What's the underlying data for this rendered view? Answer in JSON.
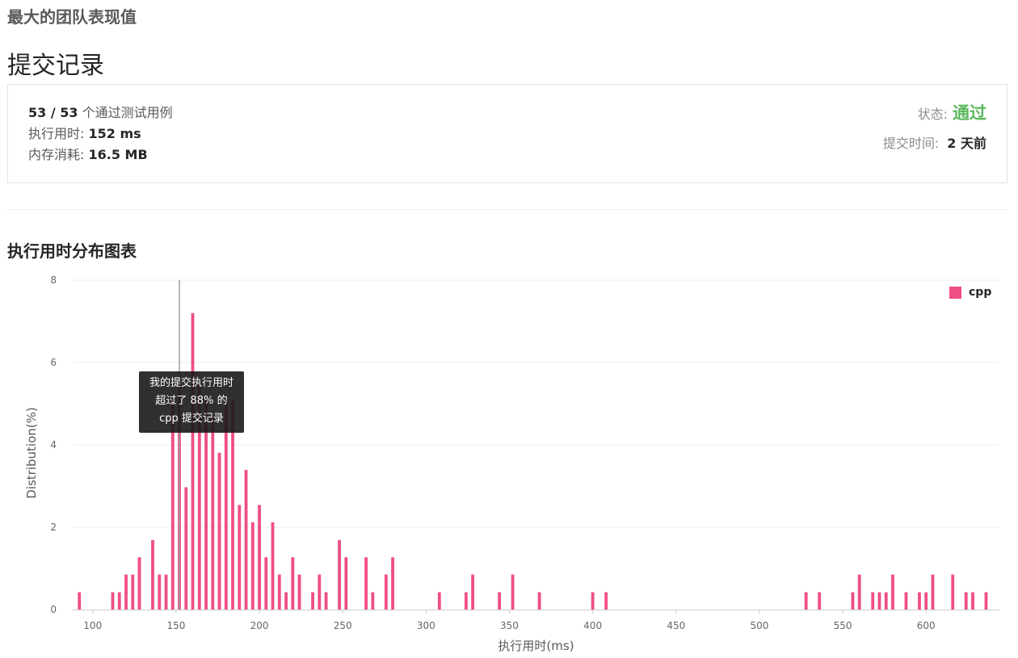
{
  "problem": {
    "title": "最大的团队表现值"
  },
  "page": {
    "heading": "提交记录"
  },
  "result": {
    "passed": "53 / 53",
    "passed_suffix": " 个通过测试用例",
    "runtime_label": "执行用时: ",
    "runtime_value": "152 ms",
    "memory_label": "内存消耗: ",
    "memory_value": "16.5 MB",
    "status_label": "状态:",
    "status_value": "通过",
    "status_color": "#5cb85c",
    "submit_time_label": "提交时间:",
    "submit_time_value": "2 天前"
  },
  "chart_section": {
    "title": "执行用时分布图表"
  },
  "tooltip": {
    "line1": "我的提交执行用时",
    "line2": "超过了 88% 的",
    "line3": "cpp 提交记录"
  },
  "legend": {
    "label": "cpp",
    "color": "#f04e84"
  },
  "chart_data": {
    "type": "bar",
    "title": "",
    "xlabel": "执行用时(ms)",
    "ylabel": "Distribution(%)",
    "xlim": [
      88,
      644
    ],
    "ylim": [
      0,
      8
    ],
    "x_ticks": [
      100,
      150,
      200,
      250,
      300,
      350,
      400,
      450,
      500,
      550,
      600
    ],
    "y_ticks": [
      0,
      2,
      4,
      6,
      8
    ],
    "marker_x": 152,
    "series": [
      {
        "name": "cpp",
        "color": "#f04e84",
        "points": [
          [
            92,
            0.42
          ],
          [
            112,
            0.42
          ],
          [
            116,
            0.42
          ],
          [
            120,
            0.85
          ],
          [
            124,
            0.85
          ],
          [
            128,
            1.27
          ],
          [
            136,
            1.69
          ],
          [
            140,
            0.85
          ],
          [
            144,
            0.85
          ],
          [
            148,
            5.08
          ],
          [
            152,
            5.5
          ],
          [
            156,
            2.97
          ],
          [
            160,
            7.2
          ],
          [
            164,
            5.5
          ],
          [
            168,
            5.08
          ],
          [
            172,
            4.66
          ],
          [
            176,
            3.81
          ],
          [
            180,
            5.08
          ],
          [
            184,
            5.08
          ],
          [
            188,
            2.54
          ],
          [
            192,
            3.39
          ],
          [
            196,
            2.12
          ],
          [
            200,
            2.54
          ],
          [
            204,
            1.27
          ],
          [
            208,
            2.12
          ],
          [
            212,
            0.85
          ],
          [
            216,
            0.42
          ],
          [
            220,
            1.27
          ],
          [
            224,
            0.85
          ],
          [
            232,
            0.42
          ],
          [
            236,
            0.85
          ],
          [
            240,
            0.42
          ],
          [
            248,
            1.69
          ],
          [
            252,
            1.27
          ],
          [
            264,
            1.27
          ],
          [
            268,
            0.42
          ],
          [
            276,
            0.85
          ],
          [
            280,
            1.27
          ],
          [
            308,
            0.42
          ],
          [
            324,
            0.42
          ],
          [
            328,
            0.85
          ],
          [
            344,
            0.42
          ],
          [
            352,
            0.85
          ],
          [
            368,
            0.42
          ],
          [
            400,
            0.42
          ],
          [
            408,
            0.42
          ],
          [
            528,
            0.42
          ],
          [
            536,
            0.42
          ],
          [
            556,
            0.42
          ],
          [
            560,
            0.85
          ],
          [
            568,
            0.42
          ],
          [
            572,
            0.42
          ],
          [
            576,
            0.42
          ],
          [
            580,
            0.85
          ],
          [
            588,
            0.42
          ],
          [
            596,
            0.42
          ],
          [
            600,
            0.42
          ],
          [
            604,
            0.85
          ],
          [
            616,
            0.85
          ],
          [
            624,
            0.42
          ],
          [
            628,
            0.42
          ],
          [
            636,
            0.42
          ]
        ]
      }
    ],
    "grid": true,
    "legend_position": "top-right"
  }
}
